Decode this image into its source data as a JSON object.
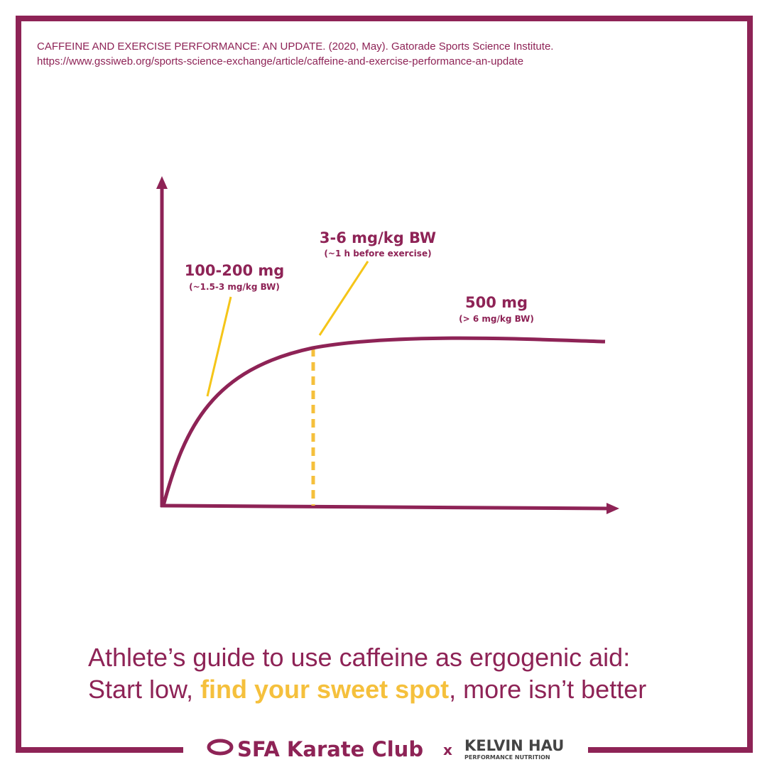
{
  "citation": {
    "line1": "CAFFEINE AND EXERCISE PERFORMANCE: AN UPDATE. (2020, May). Gatorade Sports Science Institute.",
    "line2": "https://www.gssiweb.org/sports-science-exchange/article/caffeine-and-exercise-performance-an-update"
  },
  "annotations": [
    {
      "label": "100-200 mg",
      "sublabel": "(~1.5-3 mg/kg BW)"
    },
    {
      "label": "3-6 mg/kg BW",
      "sublabel": "(~1 h before exercise)"
    },
    {
      "label": "500 mg",
      "sublabel": "(> 6 mg/kg BW)"
    }
  ],
  "headline": {
    "line1": "Athlete’s guide to use caffeine as ergogenic aid:",
    "line2": [
      "Start low, ",
      "find your sweet spot",
      ", more isn’t better"
    ]
  },
  "footer": {
    "club": "SFA Karate Club",
    "separator": "x",
    "partner": "KELVIN HAU",
    "partner_tagline": "PERFORMANCE NUTRITION"
  }
}
